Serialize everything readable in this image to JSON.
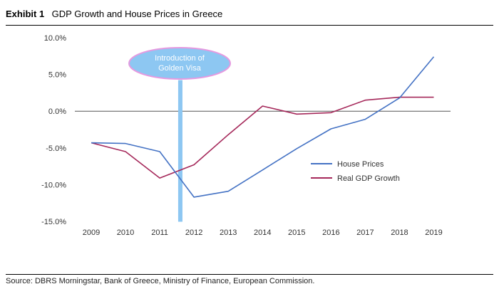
{
  "exhibit": {
    "label": "Exhibit 1",
    "title": "GDP Growth and House Prices in Greece"
  },
  "source": "Source: DBRS Morningstar, Bank of Greece, Ministry of Finance, European Commission.",
  "chart_data": {
    "type": "line",
    "title": "GDP Growth and House Prices in Greece",
    "x": [
      "2009",
      "2010",
      "2011",
      "2012",
      "2013",
      "2014",
      "2015",
      "2016",
      "2017",
      "2018",
      "2019"
    ],
    "ylim": [
      -15,
      10
    ],
    "yticks": [
      10,
      5,
      0,
      -5,
      -10,
      -15
    ],
    "ytick_labels": [
      "10.0%",
      "5.0%",
      "0.0%",
      "-5.0%",
      "-10.0%",
      "-15.0%"
    ],
    "grid": false,
    "zero_line": true,
    "legend_position": "right",
    "series": [
      {
        "name": "House Prices",
        "color": "#4472C4",
        "values": [
          -4.3,
          -4.4,
          -5.5,
          -11.7,
          -10.9,
          -8.0,
          -5.1,
          -2.4,
          -1.1,
          1.8,
          7.4
        ]
      },
      {
        "name": "Real GDP Growth",
        "color": "#A5285A",
        "values": [
          -4.3,
          -5.5,
          -9.1,
          -7.3,
          -3.2,
          0.7,
          -0.4,
          -0.2,
          1.5,
          1.9,
          1.9
        ]
      }
    ],
    "annotations": [
      {
        "text_lines": [
          "Introduction of",
          "Golden Visa"
        ],
        "year": 2011.6,
        "fill": "#8DC7F2",
        "stroke": "#E59AE0"
      }
    ]
  }
}
